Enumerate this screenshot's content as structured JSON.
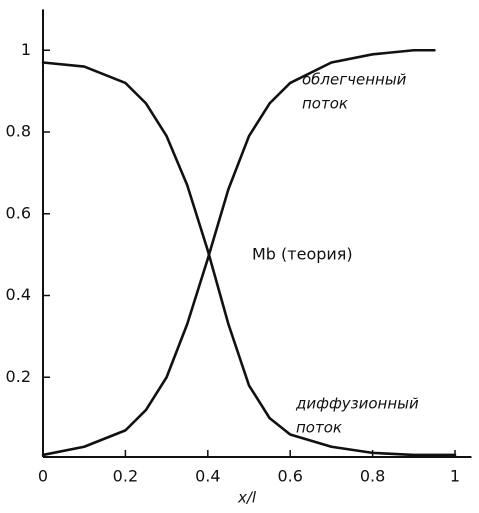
{
  "chart_data": {
    "type": "line",
    "x": [
      0,
      0.1,
      0.2,
      0.25,
      0.3,
      0.35,
      0.4,
      0.45,
      0.5,
      0.55,
      0.6,
      0.7,
      0.8,
      0.9,
      0.95,
      1.0
    ],
    "series": [
      {
        "name": "облегченный поток",
        "color": "#111111",
        "values": [
          0.01,
          0.03,
          0.07,
          0.12,
          0.2,
          0.33,
          0.49,
          0.66,
          0.79,
          0.87,
          0.92,
          0.97,
          0.99,
          1.0,
          1.0,
          null
        ]
      },
      {
        "name": "диффузионный поток",
        "color": "#111111",
        "values": [
          0.97,
          0.96,
          0.92,
          0.87,
          0.79,
          0.67,
          0.51,
          0.33,
          0.18,
          0.1,
          0.06,
          0.03,
          0.015,
          0.01,
          0.01,
          0.01
        ]
      }
    ],
    "annotations": [
      "облегченный",
      "поток",
      "Mb (теория)",
      "диффузионный",
      "поток"
    ],
    "x_label": "x/l",
    "xlim": [
      0,
      1.04
    ],
    "ylim": [
      0,
      1.1
    ],
    "xticks": [
      0,
      0.2,
      0.4,
      0.6,
      0.8,
      1
    ],
    "yticks": [
      0.2,
      0.4,
      0.6,
      0.8,
      1
    ]
  }
}
